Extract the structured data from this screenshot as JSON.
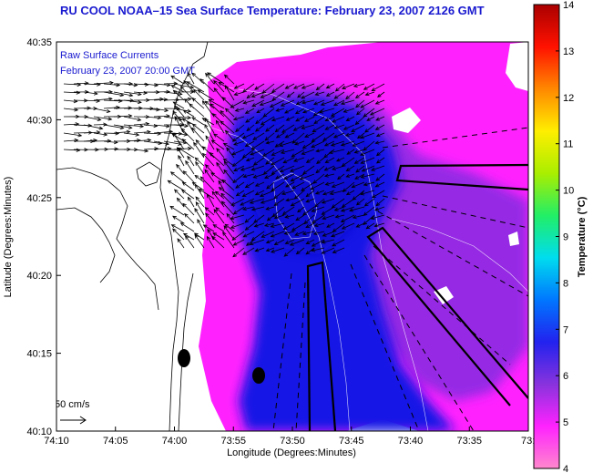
{
  "title": "RU COOL  NOAA–15  Sea Surface Temperature:  February 23, 2007 2126 GMT",
  "overlay": {
    "line1": "Raw Surface Currents",
    "line2": "February 23, 2007 20:00 GMT"
  },
  "scale_label": "50 cm/s",
  "axes": {
    "xlabel": "Longitude (Degrees:Minutes)",
    "ylabel": "Latitude (Degrees:Minutes)",
    "xticks": [
      "74:10",
      "74:05",
      "74:00",
      "73:55",
      "73:50",
      "73:45",
      "73:40",
      "73:35",
      "73:3"
    ],
    "yticks": [
      "40:35",
      "40:30",
      "40:25",
      "40:20",
      "40:15",
      "40:10"
    ]
  },
  "colorbar": {
    "label": "Temperature (°C)",
    "ticks": [
      "14",
      "13",
      "12",
      "11",
      "10",
      "9",
      "8",
      "7",
      "6",
      "5",
      "4"
    ],
    "min": 4,
    "max": 14,
    "colors": [
      "#ff88cc",
      "#ff22ff",
      "#8833dd",
      "#2222ee",
      "#0077ff",
      "#00ddee",
      "#22ee66",
      "#aaee00",
      "#ffee00",
      "#ff8800",
      "#ff1100",
      "#aa0000"
    ]
  },
  "colors": {
    "land": "#ffffff",
    "sst_warm": "#ff22ff",
    "sst_mid": "#8a2be2",
    "sst_cold": "#1010e0",
    "title": "#1a1ad0"
  }
}
